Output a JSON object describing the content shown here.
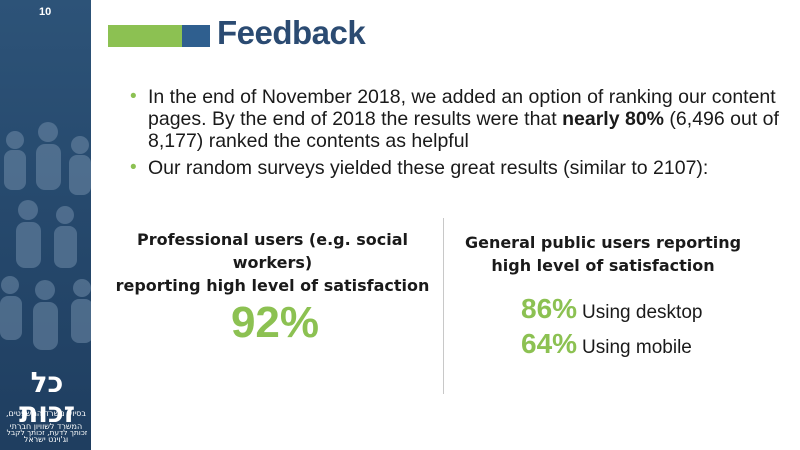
{
  "slide": {
    "number": "10"
  },
  "header": {
    "title": "Feedback"
  },
  "bullets": [
    {
      "before": "In the end of November 2018, we added an option of ranking our content pages. By the end of 2018 the results were that ",
      "bold": "nearly 80%",
      "after": " (6,496 out of 8,177) ranked the contents as helpful"
    },
    {
      "before": "Our random surveys yielded these great results (similar to 2107):",
      "bold": "",
      "after": ""
    }
  ],
  "professional": {
    "heading_line1": "Professional users (e.g. social workers)",
    "heading_line2": "reporting high level of satisfaction",
    "percent": "92%"
  },
  "public": {
    "heading_line1": "General public users reporting",
    "heading_line2": "high level of satisfaction",
    "stats": [
      {
        "value": "86%",
        "label": "Using desktop"
      },
      {
        "value": "64%",
        "label": "Using mobile"
      }
    ]
  },
  "sidebar": {
    "logo_text": "כל זכות",
    "logo_tagline": "זכותך לדעת, זכותך לקבל",
    "partners": [
      "בסיוע משרד המשפטים,",
      "המשרד לשוויון חברתי",
      "וג'וינט ישראל"
    ]
  },
  "colors": {
    "accent_green": "#8cc152",
    "title_blue": "#2b4b72",
    "sidebar_blue": "#26496d"
  }
}
